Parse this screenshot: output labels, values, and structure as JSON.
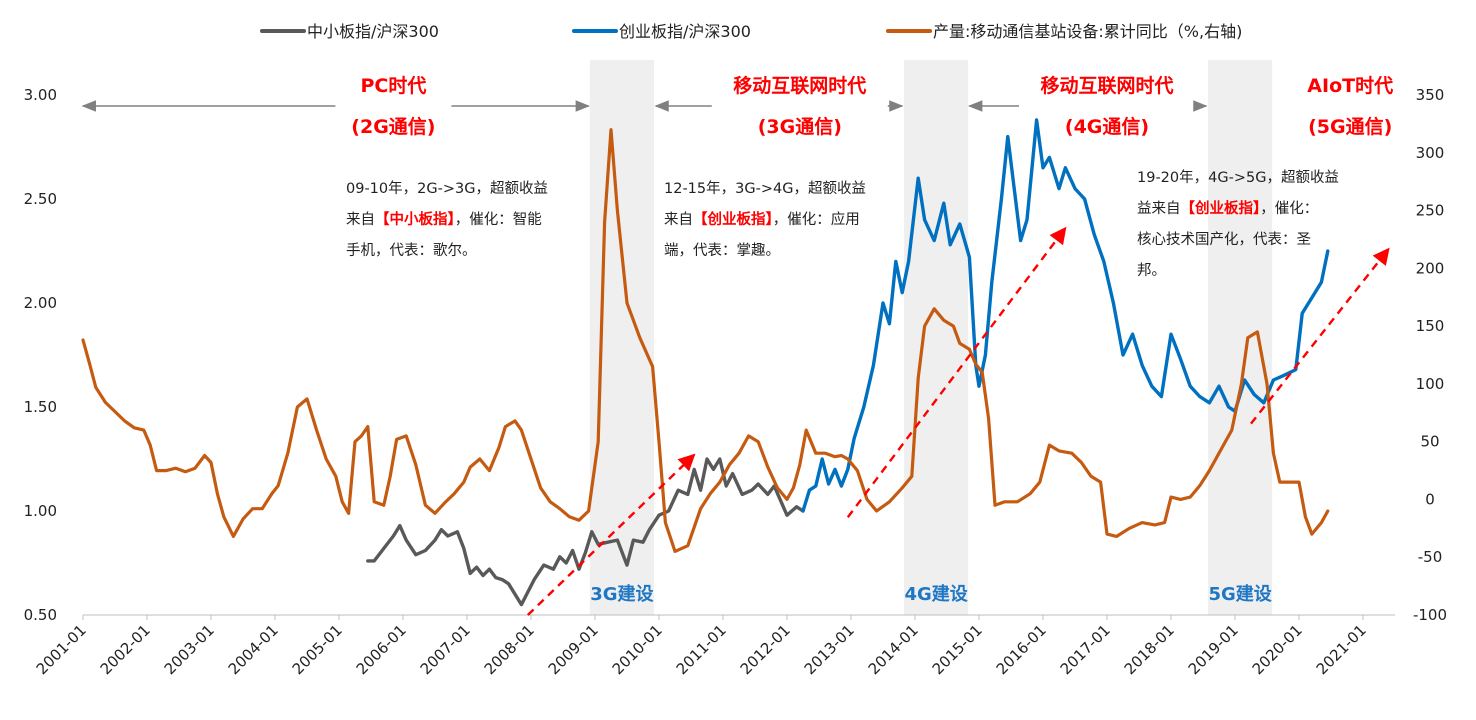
{
  "chart_data": {
    "type": "line",
    "title": "",
    "xlabel": "",
    "ylabel_left": "",
    "ylabel_right": "",
    "ylim_left": [
      0.5,
      3.0
    ],
    "ylim_right": [
      -100,
      350
    ],
    "xlim": [
      2001.0,
      2021.5
    ],
    "x_ticks": [
      "2001-01",
      "2002-01",
      "2003-01",
      "2004-01",
      "2005-01",
      "2006-01",
      "2007-01",
      "2008-01",
      "2009-01",
      "2010-01",
      "2011-01",
      "2012-01",
      "2013-01",
      "2014-01",
      "2015-01",
      "2016-01",
      "2017-01",
      "2018-01",
      "2019-01",
      "2020-01",
      "2021-01"
    ],
    "y_ticks_left": [
      "0.50",
      "1.00",
      "1.50",
      "2.00",
      "2.50",
      "3.00"
    ],
    "y_ticks_right": [
      "-100",
      "-50",
      "0",
      "50",
      "100",
      "150",
      "200",
      "250",
      "300",
      "350"
    ],
    "legend": {
      "position": "top",
      "entries": [
        "中小板指/沪深300",
        "创业板指/沪深300",
        "产量:移动通信基站设备:累计同比（%,右轴)"
      ]
    },
    "colors": {
      "smb": "#595959",
      "chinext": "#0070c0",
      "output": "#c55a11",
      "era": "#ff0000",
      "shade": "#efefef",
      "shade_label": "#1f77c4",
      "arrow": "#808080"
    },
    "shaded_periods": [
      {
        "label": "3G建设",
        "from": 2008.92,
        "to": 2009.92
      },
      {
        "label": "4G建设",
        "from": 2013.83,
        "to": 2014.83
      },
      {
        "label": "5G建设",
        "from": 2018.58,
        "to": 2019.58
      }
    ],
    "eras": [
      {
        "line1": "PC时代",
        "line2": "(2G通信)",
        "x": 2005.85,
        "arrow_from": 2001.0,
        "arrow_to": 2008.9
      },
      {
        "line1": "移动互联网时代",
        "line2": "(3G通信)",
        "x": 2012.2,
        "arrow_from": 2009.95,
        "arrow_to": 2013.8
      },
      {
        "line1": "移动互联网时代",
        "line2": "(4G通信)",
        "x": 2017.0,
        "arrow_from": 2014.85,
        "arrow_to": 2018.55
      },
      {
        "line1": "AIoT时代",
        "line2": "(5G通信)",
        "x": 2020.8,
        "arrow_from": null,
        "arrow_to": null
      }
    ],
    "annotations": [
      {
        "lines": [
          "09-10年，2G->3G，超额收益",
          "来自|【中小板指】|，催化：智能",
          "手机，代表：歌尔。"
        ]
      },
      {
        "lines": [
          "12-15年，3G->4G，超额收益",
          "来自|【创业板指】|，催化：应用",
          "端，代表：掌趣。"
        ]
      },
      {
        "lines": [
          "19-20年，4G->5G，超额收益",
          "益来自|【创业板指】|，催化：",
          "核心技术国产化，代表：圣",
          "邦。"
        ]
      }
    ],
    "trend_arrows": [
      {
        "x1": 2007.95,
        "y1": 0.5,
        "x2": 2010.55,
        "y2": 1.27
      },
      {
        "x1": 2012.95,
        "y1": 0.97,
        "x2": 2016.35,
        "y2": 2.36
      },
      {
        "x1": 2019.25,
        "y1": 1.42,
        "x2": 2021.4,
        "y2": 2.26
      }
    ],
    "series": [
      {
        "name": "中小板指/沪深300",
        "axis": "left",
        "points": [
          [
            2005.45,
            0.76
          ],
          [
            2005.55,
            0.76
          ],
          [
            2005.7,
            0.82
          ],
          [
            2005.85,
            0.88
          ],
          [
            2005.95,
            0.93
          ],
          [
            2006.05,
            0.86
          ],
          [
            2006.2,
            0.79
          ],
          [
            2006.35,
            0.81
          ],
          [
            2006.5,
            0.86
          ],
          [
            2006.6,
            0.91
          ],
          [
            2006.7,
            0.88
          ],
          [
            2006.85,
            0.9
          ],
          [
            2006.95,
            0.82
          ],
          [
            2007.05,
            0.7
          ],
          [
            2007.15,
            0.73
          ],
          [
            2007.25,
            0.69
          ],
          [
            2007.35,
            0.72
          ],
          [
            2007.45,
            0.68
          ],
          [
            2007.55,
            0.67
          ],
          [
            2007.65,
            0.65
          ],
          [
            2007.75,
            0.6
          ],
          [
            2007.85,
            0.55
          ],
          [
            2007.95,
            0.61
          ],
          [
            2008.05,
            0.67
          ],
          [
            2008.2,
            0.74
          ],
          [
            2008.35,
            0.72
          ],
          [
            2008.45,
            0.78
          ],
          [
            2008.55,
            0.75
          ],
          [
            2008.65,
            0.81
          ],
          [
            2008.75,
            0.72
          ],
          [
            2008.85,
            0.8
          ],
          [
            2008.95,
            0.9
          ],
          [
            2009.05,
            0.84
          ],
          [
            2009.2,
            0.85
          ],
          [
            2009.35,
            0.86
          ],
          [
            2009.5,
            0.74
          ],
          [
            2009.6,
            0.86
          ],
          [
            2009.75,
            0.85
          ],
          [
            2009.85,
            0.91
          ],
          [
            2010.0,
            0.98
          ],
          [
            2010.15,
            1.0
          ],
          [
            2010.3,
            1.1
          ],
          [
            2010.45,
            1.08
          ],
          [
            2010.55,
            1.2
          ],
          [
            2010.65,
            1.1
          ],
          [
            2010.75,
            1.25
          ],
          [
            2010.85,
            1.2
          ],
          [
            2010.95,
            1.25
          ],
          [
            2011.05,
            1.12
          ],
          [
            2011.15,
            1.18
          ],
          [
            2011.3,
            1.08
          ],
          [
            2011.45,
            1.1
          ],
          [
            2011.55,
            1.13
          ],
          [
            2011.7,
            1.08
          ],
          [
            2011.8,
            1.12
          ],
          [
            2011.9,
            1.05
          ],
          [
            2012.0,
            0.98
          ],
          [
            2012.15,
            1.02
          ],
          [
            2012.25,
            1.0
          ]
        ]
      },
      {
        "name": "创业板指/沪深300",
        "axis": "left",
        "points": [
          [
            2012.25,
            1.0
          ],
          [
            2012.35,
            1.1
          ],
          [
            2012.45,
            1.12
          ],
          [
            2012.55,
            1.25
          ],
          [
            2012.65,
            1.13
          ],
          [
            2012.75,
            1.2
          ],
          [
            2012.85,
            1.12
          ],
          [
            2012.95,
            1.2
          ],
          [
            2013.05,
            1.35
          ],
          [
            2013.2,
            1.5
          ],
          [
            2013.35,
            1.7
          ],
          [
            2013.5,
            2.0
          ],
          [
            2013.6,
            1.9
          ],
          [
            2013.7,
            2.2
          ],
          [
            2013.8,
            2.05
          ],
          [
            2013.9,
            2.2
          ],
          [
            2014.05,
            2.6
          ],
          [
            2014.15,
            2.4
          ],
          [
            2014.3,
            2.3
          ],
          [
            2014.45,
            2.48
          ],
          [
            2014.55,
            2.28
          ],
          [
            2014.7,
            2.38
          ],
          [
            2014.85,
            2.22
          ],
          [
            2014.95,
            1.7
          ],
          [
            2015.0,
            1.6
          ],
          [
            2015.1,
            1.75
          ],
          [
            2015.2,
            2.1
          ],
          [
            2015.35,
            2.5
          ],
          [
            2015.45,
            2.8
          ],
          [
            2015.55,
            2.55
          ],
          [
            2015.65,
            2.3
          ],
          [
            2015.75,
            2.4
          ],
          [
            2015.9,
            2.88
          ],
          [
            2016.0,
            2.65
          ],
          [
            2016.1,
            2.7
          ],
          [
            2016.25,
            2.55
          ],
          [
            2016.35,
            2.65
          ],
          [
            2016.5,
            2.55
          ],
          [
            2016.65,
            2.5
          ],
          [
            2016.8,
            2.33
          ],
          [
            2016.95,
            2.2
          ],
          [
            2017.1,
            2.0
          ],
          [
            2017.25,
            1.75
          ],
          [
            2017.4,
            1.85
          ],
          [
            2017.55,
            1.7
          ],
          [
            2017.7,
            1.6
          ],
          [
            2017.85,
            1.55
          ],
          [
            2018.0,
            1.85
          ],
          [
            2018.15,
            1.73
          ],
          [
            2018.3,
            1.6
          ],
          [
            2018.45,
            1.55
          ],
          [
            2018.6,
            1.52
          ],
          [
            2018.75,
            1.6
          ],
          [
            2018.9,
            1.5
          ],
          [
            2019.0,
            1.48
          ],
          [
            2019.15,
            1.63
          ],
          [
            2019.3,
            1.56
          ],
          [
            2019.45,
            1.52
          ],
          [
            2019.6,
            1.63
          ],
          [
            2019.75,
            1.65
          ],
          [
            2019.95,
            1.68
          ],
          [
            2020.05,
            1.95
          ],
          [
            2020.15,
            2.0
          ],
          [
            2020.25,
            2.05
          ],
          [
            2020.35,
            2.1
          ],
          [
            2020.45,
            2.25
          ]
        ]
      },
      {
        "name": "产量:移动通信基站设备:累计同比（%,右轴)",
        "axis": "right",
        "points": [
          [
            2001.0,
            138
          ],
          [
            2001.1,
            118
          ],
          [
            2001.2,
            97
          ],
          [
            2001.35,
            84
          ],
          [
            2001.5,
            76
          ],
          [
            2001.65,
            68
          ],
          [
            2001.8,
            62
          ],
          [
            2001.95,
            60
          ],
          [
            2002.05,
            47
          ],
          [
            2002.15,
            25
          ],
          [
            2002.3,
            25
          ],
          [
            2002.45,
            27
          ],
          [
            2002.6,
            24
          ],
          [
            2002.75,
            27
          ],
          [
            2002.9,
            38
          ],
          [
            2003.0,
            32
          ],
          [
            2003.1,
            5
          ],
          [
            2003.2,
            -15
          ],
          [
            2003.35,
            -32
          ],
          [
            2003.5,
            -17
          ],
          [
            2003.65,
            -8
          ],
          [
            2003.8,
            -8
          ],
          [
            2003.95,
            5
          ],
          [
            2004.05,
            12
          ],
          [
            2004.2,
            40
          ],
          [
            2004.35,
            80
          ],
          [
            2004.5,
            87
          ],
          [
            2004.65,
            60
          ],
          [
            2004.8,
            35
          ],
          [
            2004.95,
            20
          ],
          [
            2005.05,
            -2
          ],
          [
            2005.15,
            -12
          ],
          [
            2005.25,
            50
          ],
          [
            2005.35,
            55
          ],
          [
            2005.45,
            63
          ],
          [
            2005.55,
            -2
          ],
          [
            2005.7,
            -5
          ],
          [
            2005.8,
            20
          ],
          [
            2005.9,
            52
          ],
          [
            2006.05,
            55
          ],
          [
            2006.2,
            30
          ],
          [
            2006.35,
            -5
          ],
          [
            2006.5,
            -12
          ],
          [
            2006.65,
            -3
          ],
          [
            2006.8,
            5
          ],
          [
            2006.95,
            15
          ],
          [
            2007.05,
            28
          ],
          [
            2007.2,
            35
          ],
          [
            2007.35,
            25
          ],
          [
            2007.5,
            45
          ],
          [
            2007.6,
            63
          ],
          [
            2007.75,
            68
          ],
          [
            2007.85,
            60
          ],
          [
            2008.0,
            35
          ],
          [
            2008.15,
            10
          ],
          [
            2008.3,
            -2
          ],
          [
            2008.45,
            -8
          ],
          [
            2008.6,
            -15
          ],
          [
            2008.75,
            -18
          ],
          [
            2008.9,
            -10
          ],
          [
            2009.05,
            50
          ],
          [
            2009.15,
            240
          ],
          [
            2009.25,
            320
          ],
          [
            2009.35,
            250
          ],
          [
            2009.5,
            170
          ],
          [
            2009.7,
            140
          ],
          [
            2009.9,
            115
          ],
          [
            2010.0,
            50
          ],
          [
            2010.1,
            -20
          ],
          [
            2010.25,
            -45
          ],
          [
            2010.45,
            -40
          ],
          [
            2010.65,
            -8
          ],
          [
            2010.8,
            5
          ],
          [
            2010.95,
            15
          ],
          [
            2011.1,
            30
          ],
          [
            2011.25,
            40
          ],
          [
            2011.4,
            55
          ],
          [
            2011.55,
            50
          ],
          [
            2011.7,
            28
          ],
          [
            2011.85,
            10
          ],
          [
            2012.0,
            0
          ],
          [
            2012.1,
            10
          ],
          [
            2012.2,
            30
          ],
          [
            2012.3,
            60
          ],
          [
            2012.45,
            40
          ],
          [
            2012.6,
            40
          ],
          [
            2012.75,
            37
          ],
          [
            2012.85,
            38
          ],
          [
            2012.95,
            35
          ],
          [
            2013.1,
            25
          ],
          [
            2013.25,
            0
          ],
          [
            2013.4,
            -10
          ],
          [
            2013.6,
            -2
          ],
          [
            2013.8,
            10
          ],
          [
            2013.95,
            20
          ],
          [
            2014.05,
            105
          ],
          [
            2014.15,
            150
          ],
          [
            2014.3,
            165
          ],
          [
            2014.45,
            155
          ],
          [
            2014.6,
            150
          ],
          [
            2014.7,
            135
          ],
          [
            2014.85,
            130
          ],
          [
            2014.95,
            117
          ],
          [
            2015.05,
            110
          ],
          [
            2015.15,
            70
          ],
          [
            2015.25,
            -5
          ],
          [
            2015.4,
            -2
          ],
          [
            2015.6,
            -2
          ],
          [
            2015.8,
            5
          ],
          [
            2015.95,
            15
          ],
          [
            2016.1,
            47
          ],
          [
            2016.25,
            42
          ],
          [
            2016.45,
            40
          ],
          [
            2016.6,
            32
          ],
          [
            2016.75,
            20
          ],
          [
            2016.9,
            15
          ],
          [
            2017.0,
            -30
          ],
          [
            2017.15,
            -32
          ],
          [
            2017.35,
            -25
          ],
          [
            2017.55,
            -20
          ],
          [
            2017.75,
            -22
          ],
          [
            2017.9,
            -20
          ],
          [
            2018.0,
            2
          ],
          [
            2018.15,
            0
          ],
          [
            2018.3,
            2
          ],
          [
            2018.45,
            12
          ],
          [
            2018.6,
            25
          ],
          [
            2018.8,
            45
          ],
          [
            2018.95,
            60
          ],
          [
            2019.1,
            100
          ],
          [
            2019.2,
            140
          ],
          [
            2019.35,
            145
          ],
          [
            2019.5,
            100
          ],
          [
            2019.6,
            40
          ],
          [
            2019.7,
            15
          ],
          [
            2019.85,
            15
          ],
          [
            2020.0,
            15
          ],
          [
            2020.1,
            -15
          ],
          [
            2020.2,
            -30
          ],
          [
            2020.35,
            -20
          ],
          [
            2020.45,
            -10
          ]
        ]
      }
    ]
  }
}
